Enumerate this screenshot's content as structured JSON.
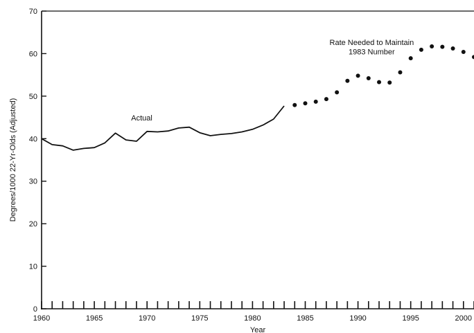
{
  "chart_data": {
    "type": "line",
    "title": "",
    "xlabel": "Year",
    "ylabel": "Degrees/1000 22-Yr-Olds (Adjusted)",
    "xlim": [
      1960,
      2001
    ],
    "ylim": [
      0,
      70
    ],
    "x_ticks": [
      1960,
      1965,
      1970,
      1975,
      1980,
      1985,
      1990,
      1995,
      2000
    ],
    "y_ticks": [
      0,
      10,
      20,
      30,
      40,
      50,
      60,
      70
    ],
    "grid": false,
    "legend": "none",
    "series": [
      {
        "style": "solid-line",
        "x": [
          1960,
          1961,
          1962,
          1963,
          1964,
          1965,
          1966,
          1967,
          1968,
          1969,
          1970,
          1971,
          1972,
          1973,
          1974,
          1975,
          1976,
          1977,
          1978,
          1979,
          1980,
          1981,
          1982,
          1983
        ],
        "y": [
          40.0,
          38.6,
          38.3,
          37.3,
          37.7,
          37.9,
          39.0,
          41.3,
          39.7,
          39.4,
          41.7,
          41.6,
          41.8,
          42.5,
          42.7,
          41.4,
          40.7,
          41.0,
          41.2,
          41.6,
          42.2,
          43.2,
          44.6,
          47.7
        ]
      },
      {
        "style": "dots",
        "x": [
          1984,
          1985,
          1986,
          1987,
          1988,
          1989,
          1990,
          1991,
          1992,
          1993,
          1994,
          1995,
          1996,
          1997,
          1998,
          1999,
          2000,
          2001
        ],
        "y": [
          47.9,
          48.3,
          48.7,
          49.3,
          50.9,
          53.6,
          54.8,
          54.2,
          53.3,
          53.2,
          55.6,
          58.9,
          60.9,
          61.7,
          61.6,
          61.2,
          60.4,
          59.2
        ]
      }
    ],
    "annotations": [
      {
        "text": "Actual",
        "x": 1969.5,
        "y": 44.3
      },
      {
        "text": "Rate Needed to Maintain",
        "x": 1991.3,
        "y": 62.0
      },
      {
        "text": "1983 Number",
        "x": 1991.3,
        "y": 59.8
      }
    ]
  }
}
